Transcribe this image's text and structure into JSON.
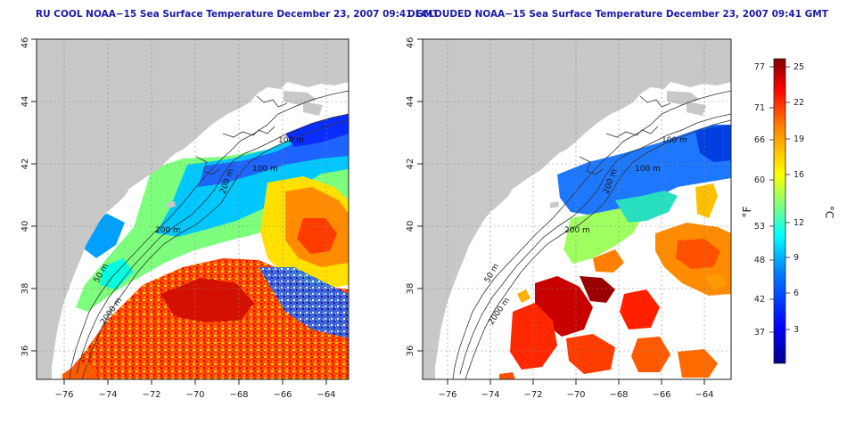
{
  "left_panel": {
    "title": "RU COOL NOAA−15 Sea Surface Temperature December 23, 2007 09:41 GMT"
  },
  "right_panel": {
    "title": "DECLOUDED NOAA−15 Sea Surface Temperature December 23, 2007 09:41 GMT"
  },
  "axes": {
    "x_ticks": [
      "−76",
      "−74",
      "−72",
      "−70",
      "−68",
      "−66",
      "−64"
    ],
    "y_ticks": [
      "36",
      "38",
      "40",
      "42",
      "44",
      "46"
    ],
    "x_range": [
      -77,
      -63
    ],
    "y_range": [
      35,
      46
    ]
  },
  "isobaths": {
    "left": [
      "100 m",
      "100 m",
      "200 m",
      "200 m",
      "50 m",
      "2000 m"
    ],
    "right": [
      "100 m",
      "100 m",
      "200 m",
      "200 m",
      "50 m",
      "2000 m"
    ]
  },
  "colorbar": {
    "unit_f": "°F",
    "unit_c": "°C",
    "f_ticks": [
      "77",
      "71",
      "66",
      "60",
      "53",
      "48",
      "42",
      "37"
    ],
    "c_ticks": [
      "25",
      "22",
      "19",
      "16",
      "12",
      "9",
      "6",
      "3"
    ],
    "colors": [
      "#00008f",
      "#0000ff",
      "#0080ff",
      "#00ffff",
      "#80ff80",
      "#ffff00",
      "#ff8000",
      "#ff0000",
      "#800000"
    ]
  }
}
